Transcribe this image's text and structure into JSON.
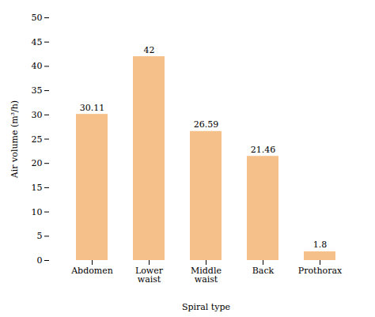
{
  "chart_data": {
    "type": "bar",
    "categories": [
      "Abdomen",
      "Lower\nwaist",
      "Middle\nwaist",
      "Back",
      "Prothorax"
    ],
    "values": [
      30.11,
      42,
      26.59,
      21.46,
      1.8
    ],
    "color": "#F5C08A",
    "xlabel": "Spiral type",
    "ylabel": "Air volume (m³/h)",
    "ylim": [
      0,
      50
    ],
    "yticks": [
      0,
      5,
      10,
      15,
      20,
      25,
      30,
      35,
      40,
      45,
      50
    ],
    "grid": false,
    "data_labels": true
  }
}
